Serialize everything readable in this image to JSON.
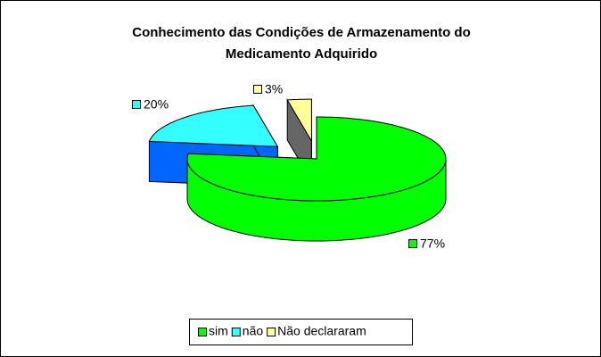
{
  "chart_data": {
    "type": "pie3d",
    "title": [
      "Conhecimento das Condições de Armazenamento do",
      "Medicamento Adquirido"
    ],
    "categories": [
      "sim",
      "não",
      "Não declararam"
    ],
    "values": [
      77,
      20,
      3
    ],
    "value_labels": [
      "77%",
      "20%",
      "3%"
    ],
    "colors": [
      "#00ff00",
      "#33ffff",
      "#ffff99"
    ],
    "side_colors": [
      "#00ff00",
      "#0066ff",
      "#666666"
    ],
    "exploded": [
      false,
      true,
      true
    ],
    "legend": "bottom"
  }
}
